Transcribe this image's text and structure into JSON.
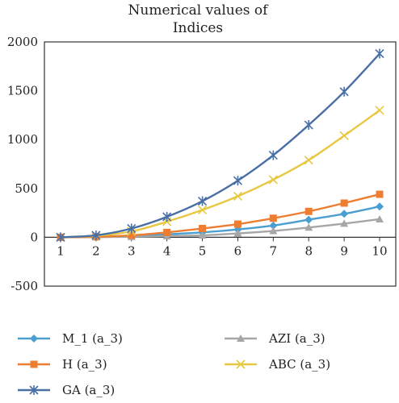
{
  "chart_data": {
    "type": "line",
    "title": [
      "Numerical values of",
      "Indices"
    ],
    "xlabel": "",
    "ylabel": "",
    "categories": [
      "1",
      "2",
      "3",
      "4",
      "5",
      "6",
      "7",
      "8",
      "9",
      "10"
    ],
    "x": [
      1,
      2,
      3,
      4,
      5,
      6,
      7,
      8,
      9,
      10
    ],
    "ylim": [
      -500,
      2000
    ],
    "yticks": [
      -500,
      0,
      500,
      1000,
      1500,
      2000
    ],
    "grid": false,
    "legend_position": "bottom",
    "series": [
      {
        "name": "M_1 (a_3)",
        "color": "#4a9fd0",
        "marker": "diamond",
        "values": [
          0,
          3,
          10,
          30,
          50,
          80,
          120,
          180,
          240,
          315
        ]
      },
      {
        "name": "AZI (a_3)",
        "color": "#a6a6a6",
        "marker": "triangle",
        "values": [
          0,
          2,
          5,
          12,
          20,
          40,
          65,
          100,
          140,
          185
        ]
      },
      {
        "name": "H (a_3)",
        "color": "#ed7d31",
        "marker": "square",
        "values": [
          0,
          5,
          20,
          50,
          90,
          135,
          195,
          265,
          350,
          440
        ]
      },
      {
        "name": "ABC (a_3)",
        "color": "#e8c840",
        "marker": "x",
        "values": [
          0,
          15,
          60,
          160,
          280,
          420,
          590,
          790,
          1040,
          1300
        ]
      },
      {
        "name": "GA (a_3)",
        "color": "#4a6fa5",
        "marker": "star",
        "values": [
          0,
          20,
          90,
          210,
          370,
          580,
          840,
          1150,
          1490,
          1880
        ]
      }
    ]
  }
}
